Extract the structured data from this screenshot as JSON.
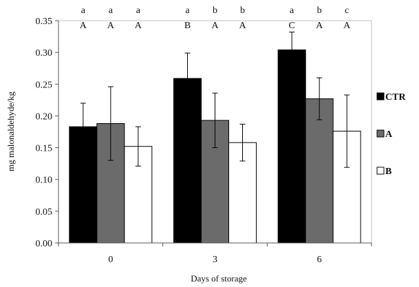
{
  "chart_data": {
    "type": "bar",
    "xlabel": "Days of storage",
    "ylabel": "mg malonaldehyde/kg",
    "ylim": [
      0,
      0.35
    ],
    "yticks": [
      "0.00",
      "0.05",
      "0.10",
      "0.15",
      "0.20",
      "0.25",
      "0.30",
      "0.35"
    ],
    "grid": false,
    "legend_position": "right",
    "categories": [
      "0",
      "3",
      "6"
    ],
    "series": [
      {
        "name": "CTR",
        "color": "#000000",
        "values": [
          0.183,
          0.259,
          0.304
        ],
        "errors": [
          0.037,
          0.04,
          0.028
        ]
      },
      {
        "name": "A",
        "color": "#6b6b6b",
        "values": [
          0.188,
          0.193,
          0.227
        ],
        "errors": [
          0.058,
          0.043,
          0.033
        ]
      },
      {
        "name": "B",
        "color": "#ffffff",
        "values": [
          0.152,
          0.158,
          0.176
        ],
        "errors": [
          0.031,
          0.029,
          0.057
        ]
      }
    ],
    "lowercase_letters": [
      [
        "a",
        "a",
        "a"
      ],
      [
        "a",
        "b",
        "b"
      ],
      [
        "a",
        "b",
        "c"
      ]
    ],
    "uppercase_letters": [
      [
        "A",
        "A",
        "A"
      ],
      [
        "B",
        "A",
        "A"
      ],
      [
        "C",
        "A",
        "A"
      ]
    ]
  }
}
